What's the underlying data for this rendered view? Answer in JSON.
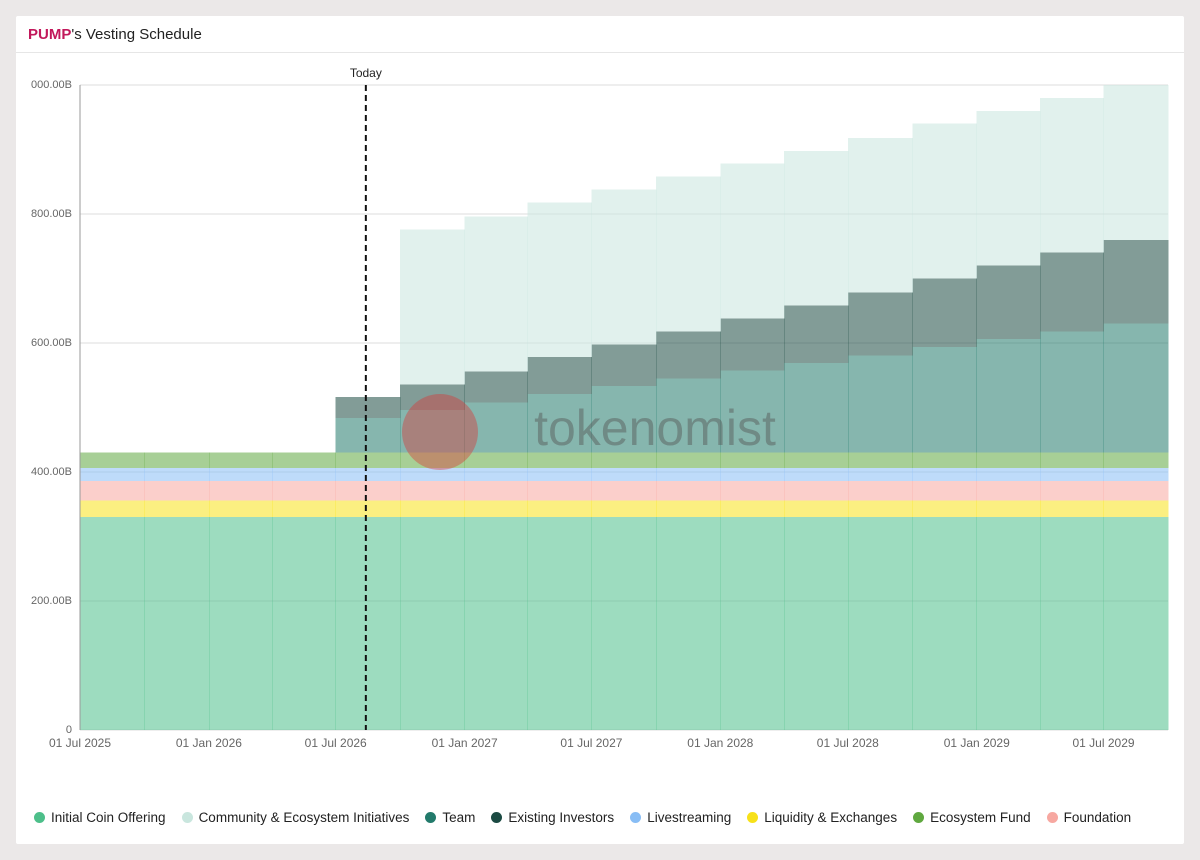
{
  "chart_data": {
    "type": "stacked-step-area",
    "title": {
      "token": "PUMP",
      "text": "'s Vesting Schedule"
    },
    "watermark": "tokenomist",
    "today": {
      "label": "Today",
      "x": "13 Aug 2026"
    },
    "x": [
      "01 Jul 2025",
      "01 Oct 2025",
      "01 Jan 2026",
      "01 Apr 2026",
      "01 Jul 2026",
      "01 Oct 2026",
      "01 Jan 2027",
      "01 Apr 2027",
      "01 Jul 2027",
      "01 Oct 2027",
      "01 Jan 2028",
      "01 Apr 2028",
      "01 Jul 2028",
      "01 Oct 2028",
      "01 Jan 2029",
      "01 Apr 2029",
      "01 Jul 2029"
    ],
    "xlim": [
      "01 Jul 2025",
      "01 Oct 2029"
    ],
    "xticks": [
      "01 Jul 2025",
      "01 Jan 2026",
      "01 Jul 2026",
      "01 Jan 2027",
      "01 Jul 2027",
      "01 Jan 2028",
      "01 Jul 2028",
      "01 Jan 2029",
      "01 Jul 2029"
    ],
    "ylim": [
      0,
      1000
    ],
    "yticks": [
      0,
      {
        "value": 200,
        "label": "200.00B"
      },
      {
        "value": 400,
        "label": "400.00B"
      },
      {
        "value": 600,
        "label": "600.00B"
      },
      {
        "value": 800,
        "label": "800.00B"
      },
      {
        "value": 1000,
        "label": "000.00B"
      }
    ],
    "grid": true,
    "series": [
      {
        "name": "Initial Coin Offering",
        "color": "#4dbf8a",
        "values": [
          330,
          330,
          330,
          330,
          330,
          330,
          330,
          330,
          330,
          330,
          330,
          330,
          330,
          330,
          330,
          330,
          330
        ]
      },
      {
        "name": "Community & Ecosystem Initiatives",
        "color": "#c9e6de",
        "values": [
          0,
          0,
          0,
          0,
          0,
          240,
          240,
          240,
          240,
          240,
          240,
          240,
          240,
          240,
          240,
          240,
          240
        ]
      },
      {
        "name": "Team",
        "color": "#227a6b",
        "values": [
          0,
          0,
          0,
          0,
          54,
          66,
          78,
          91,
          103,
          115,
          127,
          139,
          151,
          164,
          176,
          188,
          200
        ]
      },
      {
        "name": "Existing Investors",
        "color": "#1b4a42",
        "values": [
          0,
          0,
          0,
          0,
          32,
          40,
          48,
          57,
          65,
          73,
          81,
          89,
          97,
          106,
          114,
          122,
          130
        ]
      },
      {
        "name": "Livestreaming",
        "color": "#88bdf5",
        "values": [
          20,
          20,
          20,
          20,
          20,
          20,
          20,
          20,
          20,
          20,
          20,
          20,
          20,
          20,
          20,
          20,
          20
        ]
      },
      {
        "name": "Liquidity & Exchanges",
        "color": "#f7e11a",
        "values": [
          26,
          26,
          26,
          26,
          26,
          26,
          26,
          26,
          26,
          26,
          26,
          26,
          26,
          26,
          26,
          26,
          26
        ]
      },
      {
        "name": "Ecosystem Fund",
        "color": "#5fa83f",
        "values": [
          24,
          24,
          24,
          24,
          24,
          24,
          24,
          24,
          24,
          24,
          24,
          24,
          24,
          24,
          24,
          24,
          24
        ]
      },
      {
        "name": "Foundation",
        "color": "#f7a8a1",
        "values": [
          30,
          30,
          30,
          30,
          30,
          30,
          30,
          30,
          30,
          30,
          30,
          30,
          30,
          30,
          30,
          30,
          30
        ]
      }
    ]
  }
}
